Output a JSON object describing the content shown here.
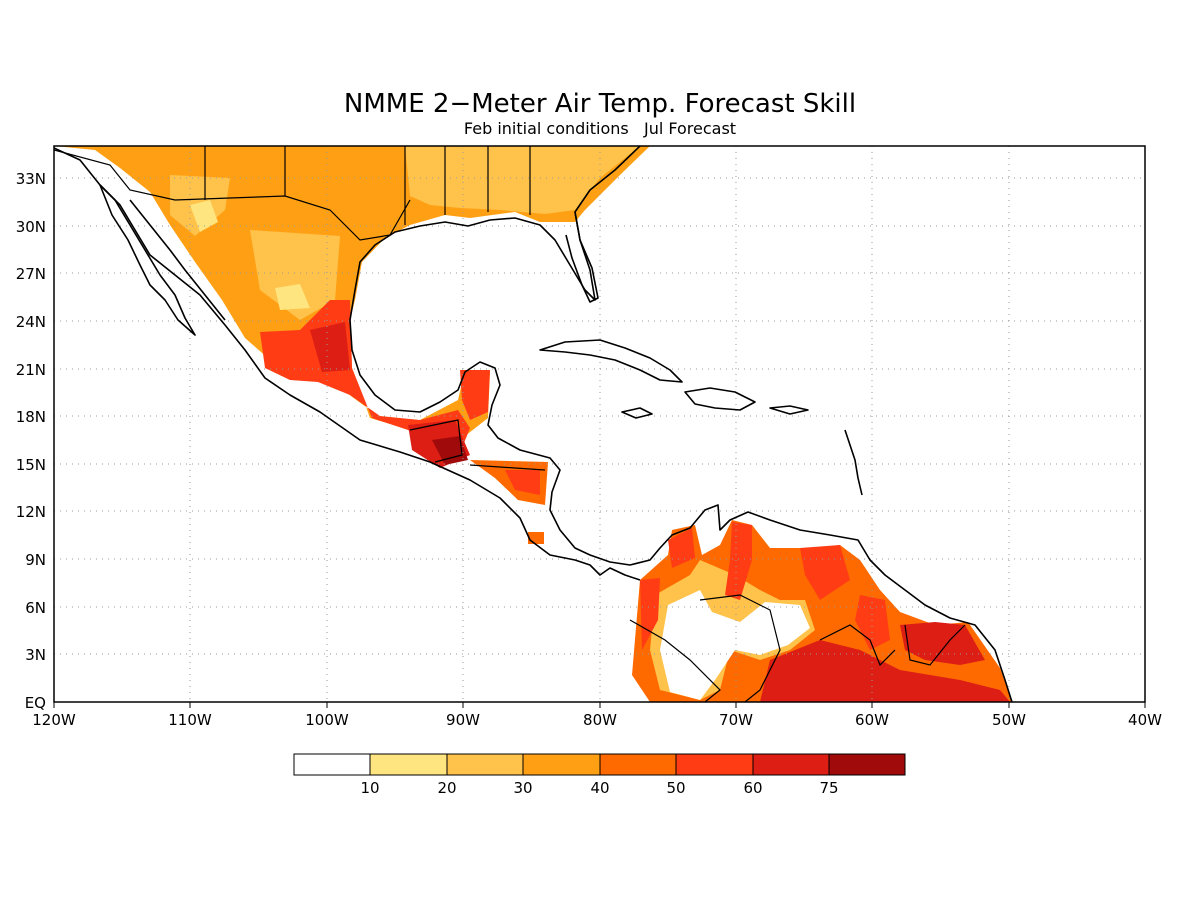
{
  "title": "NMME 2−Meter Air Temp. Forecast Skill",
  "subtitle": "Feb initial conditions   Jul Forecast",
  "lat_labels": [
    "33N",
    "30N",
    "27N",
    "24N",
    "21N",
    "18N",
    "15N",
    "12N",
    "9N",
    "6N",
    "3N",
    "EQ"
  ],
  "lon_labels": [
    "120W",
    "110W",
    "100W",
    "90W",
    "80W",
    "70W",
    "60W",
    "50W",
    "40W"
  ],
  "legend": {
    "labels": [
      "10",
      "20",
      "30",
      "40",
      "50",
      "60",
      "75"
    ],
    "colors": [
      "#ffffff",
      "#ffe57f",
      "#ffc24a",
      "#ffa014",
      "#ff6a00",
      "#ff3c14",
      "#dc1e14",
      "#a00a0a"
    ]
  },
  "map": {
    "lon_range": [
      -120,
      -40
    ],
    "lat_range": [
      0,
      35
    ],
    "grid_interval_deg": 3
  }
}
